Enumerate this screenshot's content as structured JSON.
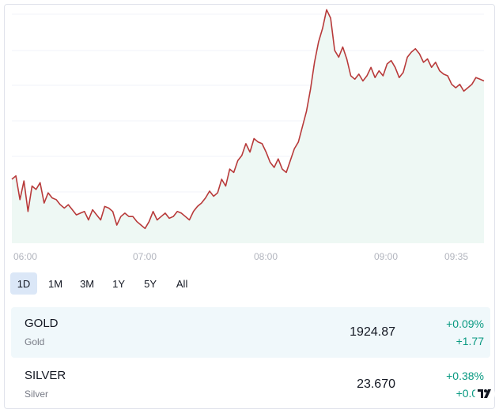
{
  "chart_data": {
    "type": "area",
    "x_ticks": [
      "06:00",
      "07:00",
      "08:00",
      "09:00",
      "09:35"
    ],
    "series": [
      {
        "symbol": "GOLD",
        "color": "#b83a3a",
        "fill": "#eaf6f2",
        "x_minutes": [
          0,
          2,
          4,
          6,
          8,
          10,
          12,
          14,
          16,
          18,
          20,
          22,
          24,
          26,
          28,
          30,
          32,
          34,
          36,
          38,
          40,
          42,
          44,
          46,
          48,
          50,
          52,
          54,
          56,
          58,
          60,
          62,
          64,
          66,
          68,
          70,
          72,
          74,
          76,
          78,
          80,
          82,
          84,
          86,
          88,
          90,
          92,
          94,
          96,
          98,
          100,
          102,
          104,
          106,
          108,
          110,
          112,
          114,
          116,
          118,
          120,
          122,
          124,
          126,
          128,
          130,
          132,
          134,
          136,
          138,
          140,
          142,
          144,
          146,
          148,
          150,
          152,
          154,
          156,
          158,
          160,
          162,
          164,
          166,
          168,
          170,
          172,
          174,
          176,
          178,
          180,
          182,
          184,
          186,
          188,
          190,
          192,
          194,
          196,
          198,
          200,
          202,
          204,
          206,
          208,
          210,
          212,
          214,
          216,
          218,
          220,
          222,
          224,
          226,
          228,
          230,
          232,
          234
        ],
        "y": [
          1919.4,
          1919.6,
          1918.2,
          1919.3,
          1917.5,
          1919.0,
          1918.8,
          1919.2,
          1918.0,
          1918.6,
          1918.3,
          1918.2,
          1917.9,
          1917.7,
          1917.9,
          1917.6,
          1917.3,
          1917.4,
          1917.5,
          1917.0,
          1917.6,
          1917.3,
          1917.0,
          1917.8,
          1917.7,
          1917.5,
          1916.7,
          1917.2,
          1917.4,
          1917.2,
          1917.2,
          1916.9,
          1916.7,
          1916.5,
          1916.9,
          1917.5,
          1917.0,
          1917.2,
          1917.4,
          1917.1,
          1917.2,
          1917.5,
          1917.4,
          1917.2,
          1917.0,
          1917.5,
          1917.8,
          1918.0,
          1918.3,
          1918.7,
          1918.4,
          1918.6,
          1919.4,
          1919.0,
          1920.0,
          1919.8,
          1920.5,
          1920.8,
          1921.5,
          1921.0,
          1921.8,
          1921.6,
          1921.5,
          1921.0,
          1920.4,
          1920.1,
          1920.6,
          1920.0,
          1919.8,
          1920.5,
          1921.2,
          1921.6,
          1922.5,
          1923.4,
          1924.7,
          1926.3,
          1927.5,
          1928.3,
          1929.4,
          1928.9,
          1927.0,
          1926.6,
          1927.2,
          1926.5,
          1925.5,
          1925.3,
          1925.6,
          1925.2,
          1925.5,
          1926.0,
          1925.4,
          1925.8,
          1925.5,
          1926.2,
          1926.4,
          1926.0,
          1925.4,
          1925.7,
          1926.6,
          1926.9,
          1927.1,
          1926.8,
          1926.3,
          1926.5,
          1926.0,
          1926.3,
          1925.8,
          1925.6,
          1925.5,
          1925.0,
          1924.8,
          1925.0,
          1924.6,
          1924.8,
          1925.0,
          1925.4,
          1925.3,
          1925.2
        ],
        "ylim": [
          1916.0,
          1929.6
        ]
      }
    ]
  },
  "ranges": {
    "r1d": "1D",
    "r1m": "1M",
    "r3m": "3M",
    "r1y": "1Y",
    "r5y": "5Y",
    "rall": "All",
    "active": "1D"
  },
  "rows": [
    {
      "symbol": "GOLD",
      "name": "Gold",
      "price": "1924.87",
      "change_pct": "+0.09%",
      "change_abs": "+1.77"
    },
    {
      "symbol": "SILVER",
      "name": "Silver",
      "price": "23.670",
      "change_pct": "+0.38%",
      "change_abs": "+0.09"
    }
  ],
  "logo": {
    "text": "TV"
  }
}
